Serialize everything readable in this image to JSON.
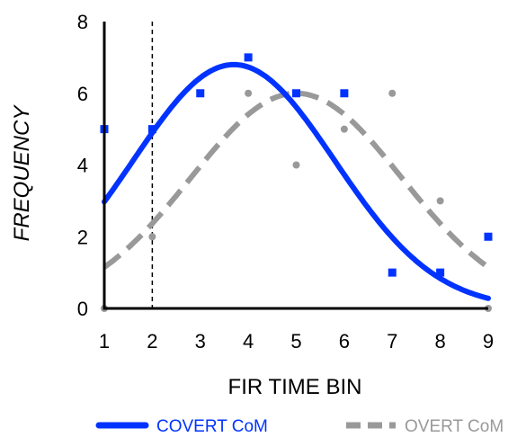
{
  "chart_data": {
    "type": "scatter",
    "title": "",
    "xlabel": "FIR TIME BIN",
    "ylabel": "FREQUENCY",
    "xlim": [
      1,
      9
    ],
    "ylim": [
      0,
      8
    ],
    "x_ticks": [
      "1",
      "2",
      "3",
      "4",
      "5",
      "6",
      "7",
      "8",
      "9"
    ],
    "y_ticks": [
      "0",
      "2",
      "4",
      "6",
      "8"
    ],
    "grid": false,
    "legend_position": "bottom",
    "reference_line_x": 2,
    "series": [
      {
        "name": "COVERT CoM",
        "color": "#0033ff",
        "marker": "square",
        "line_style": "solid",
        "points": [
          {
            "x": 1,
            "y": 5
          },
          {
            "x": 2,
            "y": 5
          },
          {
            "x": 3,
            "y": 6
          },
          {
            "x": 4,
            "y": 7
          },
          {
            "x": 5,
            "y": 6
          },
          {
            "x": 6,
            "y": 6
          },
          {
            "x": 7,
            "y": 1
          },
          {
            "x": 8,
            "y": 1
          },
          {
            "x": 9,
            "y": 2
          }
        ],
        "fit": {
          "amplitude": 6.8,
          "center": 3.7,
          "sigma": 2.1
        }
      },
      {
        "name": "OVERT CoM",
        "color": "#999999",
        "marker": "circle",
        "line_style": "dashed",
        "points": [
          {
            "x": 1,
            "y": 0
          },
          {
            "x": 2,
            "y": 2
          },
          {
            "x": 3,
            "y": 6
          },
          {
            "x": 4,
            "y": 6
          },
          {
            "x": 5,
            "y": 4
          },
          {
            "x": 6,
            "y": 5
          },
          {
            "x": 7,
            "y": 6
          },
          {
            "x": 8,
            "y": 3
          },
          {
            "x": 9,
            "y": 0
          }
        ],
        "fit": {
          "amplitude": 6.0,
          "center": 5.0,
          "sigma": 2.2
        }
      }
    ]
  }
}
